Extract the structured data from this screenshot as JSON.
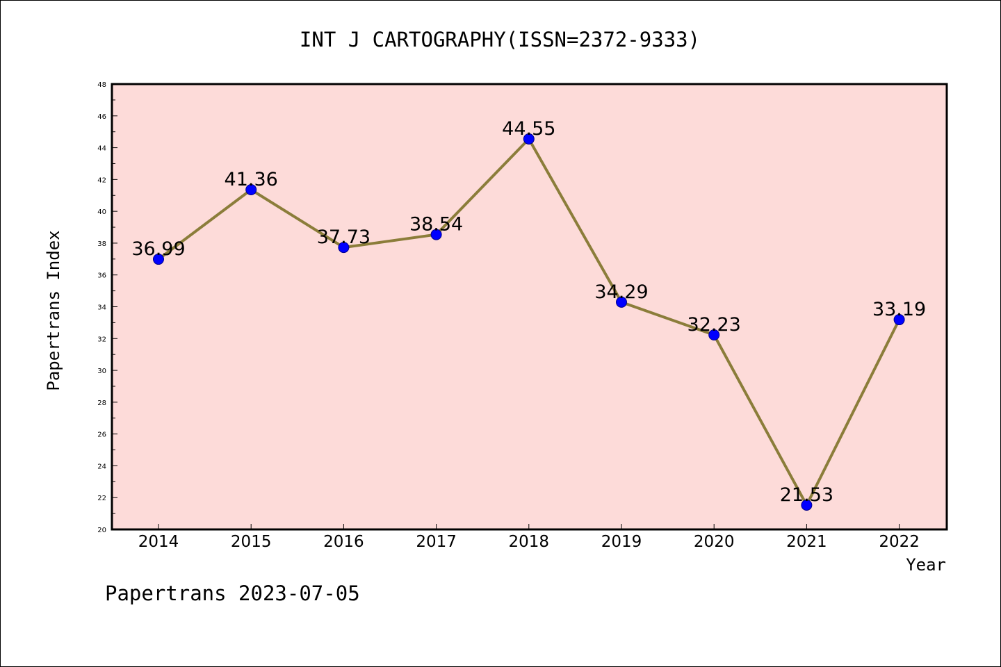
{
  "chart_data": {
    "type": "line",
    "title": "INT J CARTOGRAPHY(ISSN=2372-9333)",
    "xlabel": "Year",
    "ylabel": "Papertrans Index",
    "categories": [
      "2014",
      "2015",
      "2016",
      "2017",
      "2018",
      "2019",
      "2020",
      "2021",
      "2022"
    ],
    "series": [
      {
        "values": [
          36.99,
          41.36,
          37.73,
          38.54,
          44.55,
          34.29,
          32.23,
          21.53,
          33.19
        ]
      }
    ],
    "data_labels": [
      "36.99",
      "41.36",
      "37.73",
      "38.54",
      "44.55",
      "34.29",
      "32.23",
      "21.53",
      "33.19"
    ],
    "ylim": [
      20,
      48
    ],
    "yticks": [
      "20",
      "22",
      "24",
      "26",
      "28",
      "30",
      "32",
      "34",
      "36",
      "38",
      "40",
      "42",
      "44",
      "46",
      "48"
    ],
    "grid": false,
    "colors": {
      "plot_bg": "#fddbd9",
      "line": "#8b7d3a",
      "marker": "#0000ff"
    }
  },
  "footer": "Papertrans 2023-07-05"
}
